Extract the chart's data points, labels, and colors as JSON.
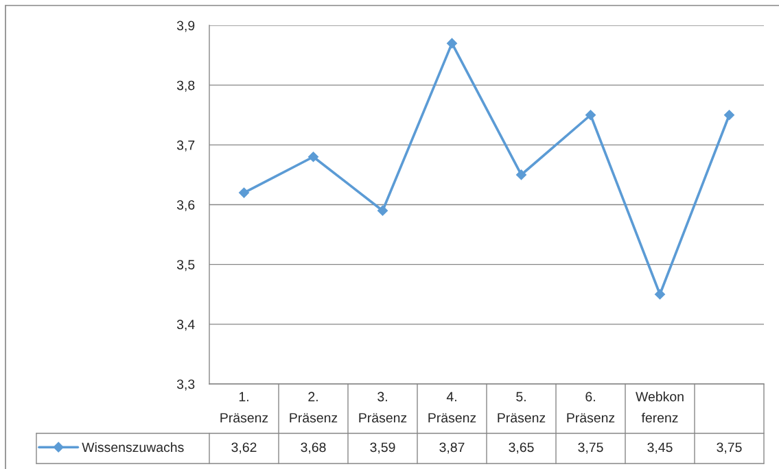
{
  "chart_data": {
    "type": "line",
    "categories": [
      "1.\nPräsenz",
      "2.\nPräsenz",
      "3.\nPräsenz",
      "4.\nPräsenz",
      "5.\nPräsenz",
      "6.\nPräsenz",
      "Webkon\nferenz",
      null
    ],
    "series": [
      {
        "name": "Wissenszuwachs",
        "color": "#5b9bd5",
        "values": [
          3.62,
          3.68,
          3.59,
          3.87,
          3.65,
          3.75,
          3.45,
          3.75
        ],
        "value_labels": [
          "3,62",
          "3,68",
          "3,59",
          "3,87",
          "3,65",
          "3,75",
          "3,45",
          "3,75"
        ]
      }
    ],
    "ylim": [
      3.3,
      3.9
    ],
    "yticks": [
      {
        "value": 3.3,
        "label": "3,3"
      },
      {
        "value": 3.4,
        "label": "3,4"
      },
      {
        "value": 3.5,
        "label": "3,5"
      },
      {
        "value": 3.6,
        "label": "3,6"
      },
      {
        "value": 3.7,
        "label": "3,7"
      },
      {
        "value": 3.8,
        "label": "3,8"
      },
      {
        "value": 3.9,
        "label": "3,9"
      }
    ],
    "grid": "y",
    "legend": "bottom left",
    "marker": "diamond",
    "line_style": "solid"
  }
}
